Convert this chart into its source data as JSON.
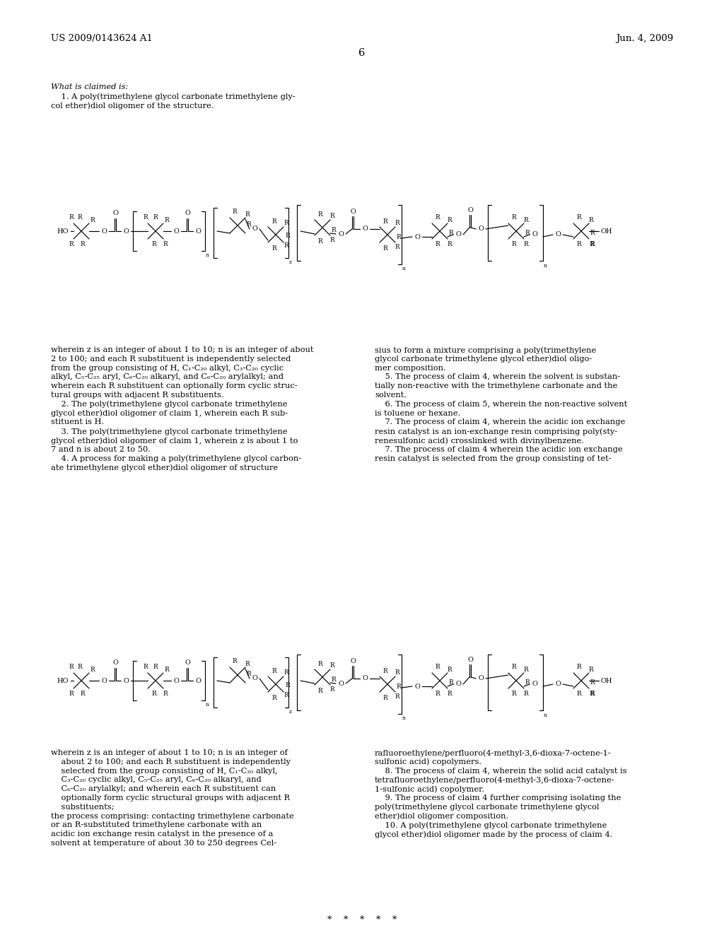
{
  "background_color": "#ffffff",
  "page_number": "6",
  "header_left": "US 2009/0143624 A1",
  "header_right": "Jun. 4, 2009",
  "section_title": "What is claimed is:",
  "claim1_line1": "    1. A poly(trimethylene glycol carbonate trimethylene gly-",
  "claim1_line2": "col ether)diol oligomer of the structure.",
  "left_col_text": [
    "wherein z is an integer of about 1 to 10; n is an integer of about",
    "2 to 100; and each R substituent is independently selected",
    "from the group consisting of H, C₁-C₂₀ alkyl, C₃-C₂₀ cyclic",
    "alkyl, C₅-C₂₅ aryl, C₆-C₂₀ alkaryl, and C₆-C₂₀ arylalkyl; and",
    "wherein each R substituent can optionally form cyclic struc-",
    "tural groups with adjacent R substituents.",
    "    2. The poly(trimethylene glycol carbonate trimethylene",
    "glycol ether)diol oligomer of claim 1, wherein each R sub-",
    "stituent is H.",
    "    3. The poly(trimethylene glycol carbonate trimethylene",
    "glycol ether)diol oligomer of claim 1, wherein z is about 1 to",
    "7 and n is about 2 to 50.",
    "    4. A process for making a poly(trimethylene glycol carbon-",
    "ate trimethylene glycol ether)diol oligomer of structure"
  ],
  "right_col_text": [
    "sius to form a mixture comprising a poly(trimethylene",
    "glycol carbonate trimethylene glycol ether)diol oligo-",
    "mer composition.",
    "    5. The process of claim 4, wherein the solvent is substan-",
    "tially non-reactive with the trimethylene carbonate and the",
    "solvent.",
    "    6. The process of claim 5, wherein the non-reactive solvent",
    "is toluene or hexane.",
    "    7. The process of claim 4, wherein the acidic ion exchange",
    "resin catalyst is an ion-exchange resin comprising poly(sty-",
    "renesulfonic acid) crosslinked with divinylbenzene.",
    "    7. The process of claim 4 wherein the acidic ion exchange",
    "resin catalyst is selected from the group consisting of tet-"
  ],
  "bottom_left_col_text": [
    "wherein z is an integer of about 1 to 10; n is an integer of",
    "    about 2 to 100; and each R substituent is independently",
    "    selected from the group consisting of H, C₁-C₂₀ alkyl,",
    "    C₃-C₂₀ cyclic alkyl, C₅-C₂₅ aryl, C₆-C₂₀ alkaryl, and",
    "    C₆-C₂₀ arylalkyl; and wherein each R substituent can",
    "    optionally form cyclic structural groups with adjacent R",
    "    substituents;",
    "the process comprising: contacting trimethylene carbonate",
    "or an R-substituted trimethylene carbonate with an",
    "acidic ion exchange resin catalyst in the presence of a",
    "solvent at temperature of about 30 to 250 degrees Cel-"
  ],
  "bottom_right_col_text": [
    "rafluoroethylene/perfluoro(4-methyl-3,6-dioxa-7-octene-1-",
    "sulfonic acid) copolymers.",
    "    8. The process of claim 4, wherein the solid acid catalyst is",
    "tetrafluoroethylene/perfluoro(4-methyl-3,6-dioxa-7-octene-",
    "1-sulfonic acid) copolymer.",
    "    9. The process of claim 4 further comprising isolating the",
    "poly(trimethylene glycol carbonate trimethylene glycol",
    "ether)diol oligomer composition.",
    "    10. A poly(trimethylene glycol carbonate trimethylene",
    "glycol ether)diol oligomer made by the process of claim 4."
  ],
  "footer_stars": "*  *  *  *  *"
}
